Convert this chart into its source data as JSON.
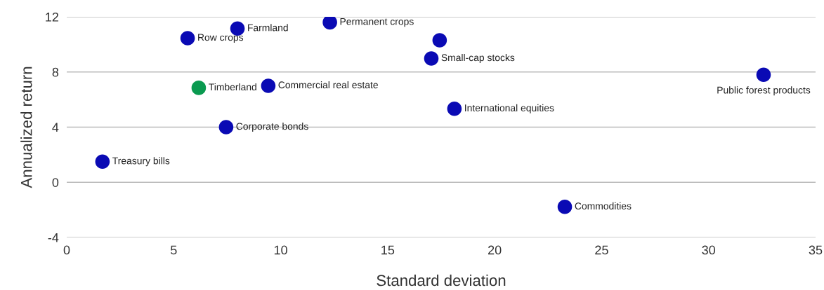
{
  "chart_data": {
    "type": "scatter",
    "xlabel": "Standard deviation",
    "ylabel": "Annualized return",
    "series": [
      {
        "color": "#0a0ab4",
        "x": [
          1.67,
          5.65,
          7.98,
          12.3,
          17.43,
          17.04,
          32.57,
          9.42,
          18.12,
          7.45,
          23.28
        ],
        "values": [
          1.5,
          10.45,
          11.15,
          11.6,
          10.3,
          8.98,
          7.8,
          7.0,
          5.33,
          4.0,
          -1.78
        ]
      },
      {
        "color": "#0a9a50",
        "x": [
          6.17
        ],
        "values": [
          6.85
        ]
      }
    ],
    "annotations": [
      {
        "text": "Treasury bills",
        "x": 1.67,
        "y": 1.5
      },
      {
        "text": "Row crops",
        "x": 5.65,
        "y": 10.45
      },
      {
        "text": "Farmland",
        "x": 7.98,
        "y": 11.15
      },
      {
        "text": "Permanent crops",
        "x": 12.3,
        "y": 11.6
      },
      {
        "text": "Small-cap stocks",
        "x": 17.04,
        "y": 8.98
      },
      {
        "text": "Public forest products",
        "x": 32.57,
        "y": 7.8
      },
      {
        "text": "Timberland",
        "x": 6.17,
        "y": 6.85
      },
      {
        "text": "Commercial real estate",
        "x": 9.42,
        "y": 7.0
      },
      {
        "text": "International equities",
        "x": 18.12,
        "y": 5.33
      },
      {
        "text": "Corporate bonds",
        "x": 7.45,
        "y": 4.0
      },
      {
        "text": "Commodities",
        "x": 23.28,
        "y": -1.78
      }
    ],
    "xlim": [
      0,
      35
    ],
    "ylim": [
      -4,
      12
    ],
    "xticks": [
      0,
      5,
      10,
      15,
      20,
      25,
      30,
      35
    ],
    "yticks": [
      -4,
      0,
      4,
      8,
      12
    ],
    "grid": "y",
    "marker": "circle"
  }
}
